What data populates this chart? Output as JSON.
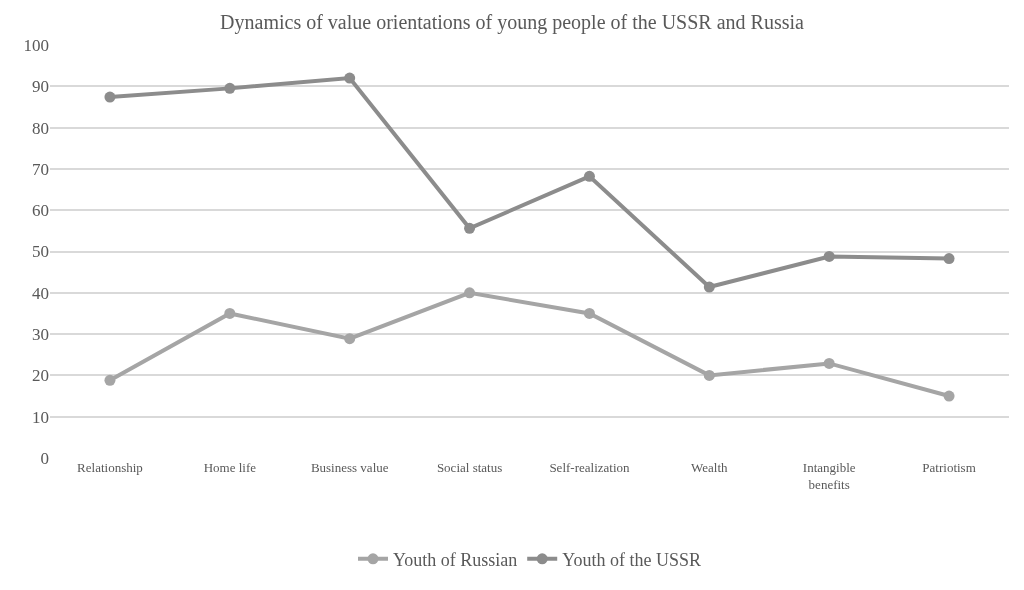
{
  "chart_data": {
    "type": "line",
    "title": "Dynamics of value orientations of young people of the USSR and Russia",
    "categories": [
      "Relationship",
      "Home life",
      "Business value",
      "Social status",
      "Self-realization",
      "Wealth",
      "Intangible benefits",
      "Patriotism"
    ],
    "series": [
      {
        "name": "Youth of Russian",
        "color": "#a5a5a5",
        "values": [
          18.8,
          35,
          28.9,
          40,
          35,
          20,
          22.9,
          15
        ]
      },
      {
        "name": "Youth of the USSR",
        "color": "#8c8c8c",
        "values": [
          87.4,
          89.5,
          92,
          55.6,
          68.2,
          41.4,
          48.8,
          48.3
        ]
      }
    ],
    "ylim": [
      0,
      100
    ],
    "yticks": [
      0,
      10,
      20,
      30,
      40,
      50,
      60,
      70,
      80,
      90,
      100
    ],
    "grid": "y",
    "legend": "bottom",
    "marker": "circle",
    "line_style": "solid"
  }
}
